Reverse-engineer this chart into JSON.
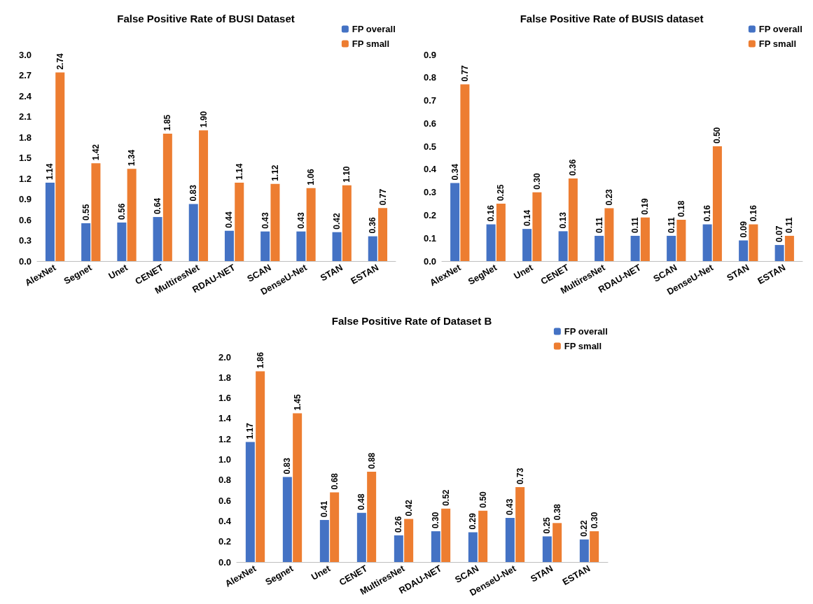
{
  "chart_data": [
    {
      "type": "bar",
      "title": "False Positive Rate of BUSI Dataset",
      "categories": [
        "AlexNet",
        "Segnet",
        "Unet",
        "CENET",
        "MultiresNet",
        "RDAU-NET",
        "SCAN",
        "DenseU-Net",
        "STAN",
        "ESTAN"
      ],
      "series": [
        {
          "name": "FP overall",
          "color": "#4472c4",
          "values": [
            1.14,
            0.55,
            0.56,
            0.64,
            0.83,
            0.44,
            0.43,
            0.43,
            0.42,
            0.36
          ],
          "value_labels": [
            "1.14",
            "0.55",
            "0.56",
            "0.64",
            "0.83",
            "0.44",
            "0.43",
            "0.43",
            "0.42",
            "0.36"
          ]
        },
        {
          "name": "FP small",
          "color": "#ed7d31",
          "values": [
            2.74,
            1.42,
            1.34,
            1.85,
            1.9,
            1.14,
            1.12,
            1.06,
            1.1,
            0.77
          ],
          "value_labels": [
            "2.74",
            "1.42",
            "1.34",
            "1.85",
            "1.90",
            "1.14",
            "1.12",
            "1.06",
            "1.10",
            "0.77"
          ]
        }
      ],
      "ylim": [
        0,
        3
      ],
      "yticks": [
        {
          "value": 0,
          "label": "0.0"
        },
        {
          "value": 0.3,
          "label": "0.3"
        },
        {
          "value": 0.6,
          "label": "0.6"
        },
        {
          "value": 0.9,
          "label": "0.9"
        },
        {
          "value": 1.2,
          "label": "1.2"
        },
        {
          "value": 1.5,
          "label": "1.5"
        },
        {
          "value": 1.8,
          "label": "1.8"
        },
        {
          "value": 2.1,
          "label": "2.1"
        },
        {
          "value": 2.4,
          "label": "2.4"
        },
        {
          "value": 2.7,
          "label": "2.7"
        },
        {
          "value": 3,
          "label": "3.0"
        }
      ],
      "grid": false,
      "legend": "top right"
    },
    {
      "type": "bar",
      "title": "False Positive Rate of BUSIS dataset",
      "categories": [
        "AlexNet",
        "SegNet",
        "Unet",
        "CENET",
        "MultiresNet",
        "RDAU-NET",
        "SCAN",
        "DenseU-Net",
        "STAN",
        "ESTAN"
      ],
      "series": [
        {
          "name": "FP overall",
          "color": "#4472c4",
          "values": [
            0.34,
            0.16,
            0.14,
            0.13,
            0.11,
            0.11,
            0.11,
            0.16,
            0.09,
            0.07
          ],
          "value_labels": [
            "0.34",
            "0.16",
            "0.14",
            "0.13",
            "0.11",
            "0.11",
            "0.11",
            "0.16",
            "0.09",
            "0.07"
          ]
        },
        {
          "name": "FP small",
          "color": "#ed7d31",
          "values": [
            0.77,
            0.25,
            0.3,
            0.36,
            0.23,
            0.19,
            0.18,
            0.5,
            0.16,
            0.11
          ],
          "value_labels": [
            "0.77",
            "0.25",
            "0.30",
            "0.36",
            "0.23",
            "0.19",
            "0.18",
            "0.50",
            "0.16",
            "0.11"
          ]
        }
      ],
      "ylim": [
        0,
        0.9
      ],
      "yticks": [
        {
          "value": 0,
          "label": "0.0"
        },
        {
          "value": 0.1,
          "label": "0.1"
        },
        {
          "value": 0.2,
          "label": "0.2"
        },
        {
          "value": 0.3,
          "label": "0.3"
        },
        {
          "value": 0.4,
          "label": "0.4"
        },
        {
          "value": 0.5,
          "label": "0.5"
        },
        {
          "value": 0.6,
          "label": "0.6"
        },
        {
          "value": 0.7,
          "label": "0.7"
        },
        {
          "value": 0.8,
          "label": "0.8"
        },
        {
          "value": 0.9,
          "label": "0.9"
        }
      ],
      "grid": false,
      "legend": "top right"
    },
    {
      "type": "bar",
      "title": "False Positive Rate of Dataset B",
      "categories": [
        "AlexNet",
        "Segnet",
        "Unet",
        "CENET",
        "MultiresNet",
        "RDAU-NET",
        "SCAN",
        "DenseU-Net",
        "STAN",
        "ESTAN"
      ],
      "series": [
        {
          "name": "FP overall",
          "color": "#4472c4",
          "values": [
            1.17,
            0.83,
            0.41,
            0.48,
            0.26,
            0.3,
            0.29,
            0.43,
            0.25,
            0.22
          ],
          "value_labels": [
            "1.17",
            "0.83",
            "0.41",
            "0.48",
            "0.26",
            "0.30",
            "0.29",
            "0.43",
            "0.25",
            "0.22"
          ]
        },
        {
          "name": "FP small",
          "color": "#ed7d31",
          "values": [
            1.86,
            1.45,
            0.68,
            0.88,
            0.42,
            0.52,
            0.5,
            0.73,
            0.38,
            0.3
          ],
          "value_labels": [
            "1.86",
            "1.45",
            "0.68",
            "0.88",
            "0.42",
            "0.52",
            "0.50",
            "0.73",
            "0.38",
            "0.30"
          ]
        }
      ],
      "ylim": [
        0,
        2
      ],
      "yticks": [
        {
          "value": 0,
          "label": "0.0"
        },
        {
          "value": 0.2,
          "label": "0.2"
        },
        {
          "value": 0.4,
          "label": "0.4"
        },
        {
          "value": 0.6,
          "label": "0.6"
        },
        {
          "value": 0.8,
          "label": "0.8"
        },
        {
          "value": 1,
          "label": "1.0"
        },
        {
          "value": 1.2,
          "label": "1.2"
        },
        {
          "value": 1.4,
          "label": "1.4"
        },
        {
          "value": 1.6,
          "label": "1.6"
        },
        {
          "value": 1.8,
          "label": "1.8"
        },
        {
          "value": 2,
          "label": "2.0"
        }
      ],
      "grid": false,
      "legend": "top right"
    }
  ]
}
